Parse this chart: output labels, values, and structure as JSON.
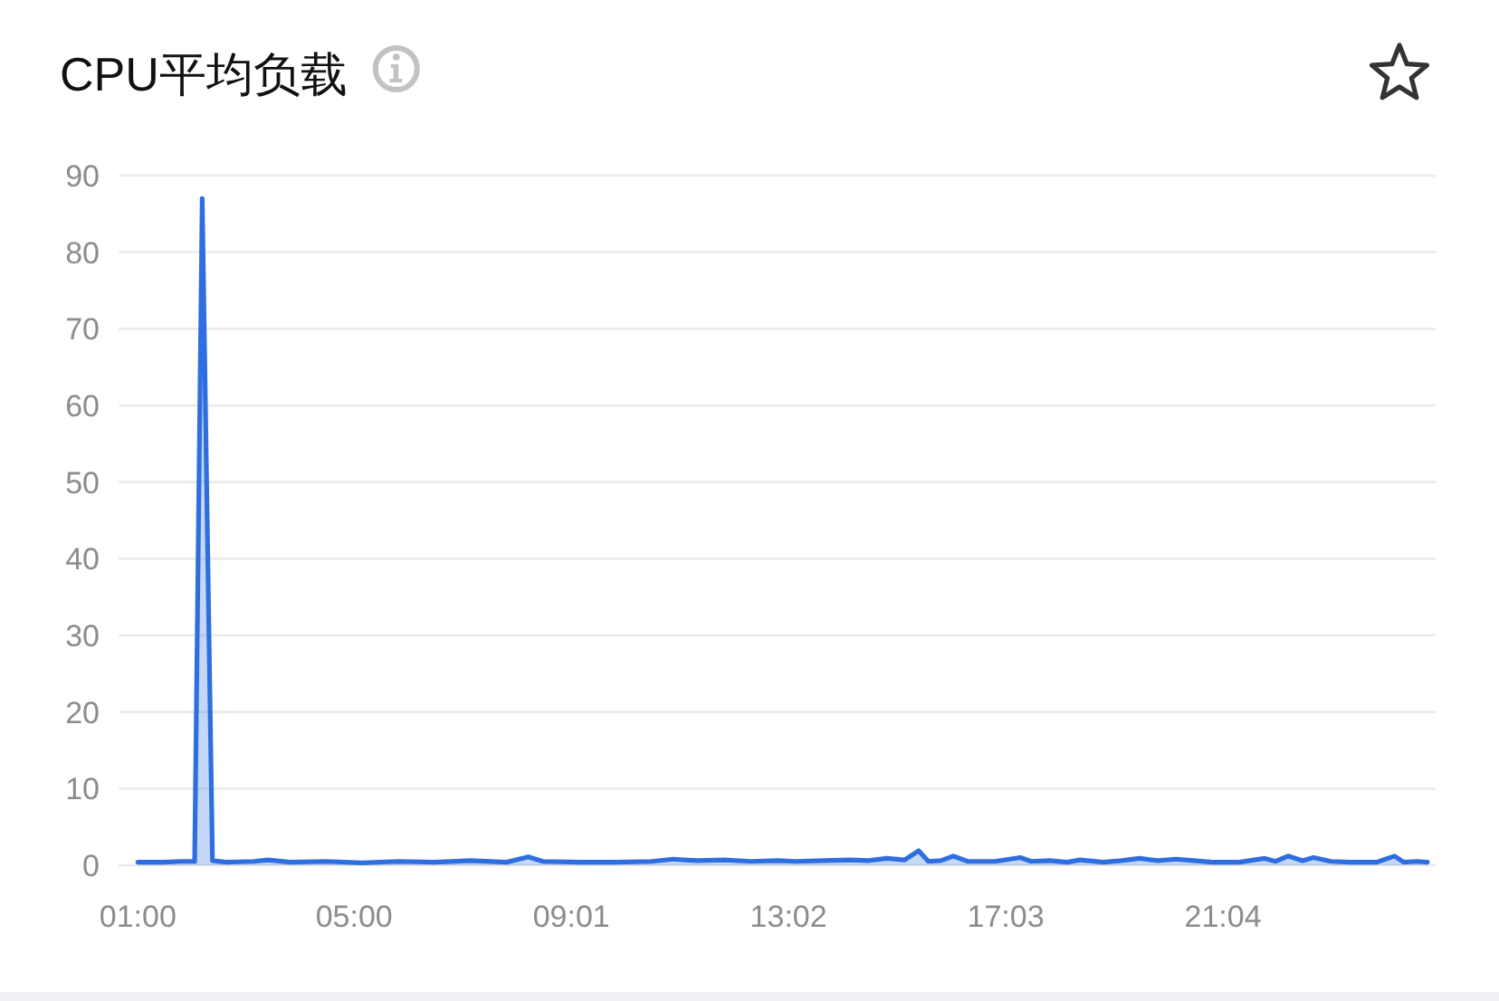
{
  "chart_data": {
    "type": "area",
    "title": "CPU平均负载",
    "color": "#2f6ee0",
    "x": [
      1.0,
      1.47,
      1.8,
      2.05,
      2.19,
      2.38,
      2.64,
      3.14,
      3.41,
      3.81,
      4.48,
      5.15,
      5.82,
      6.48,
      7.15,
      7.82,
      8.22,
      8.49,
      9.16,
      9.83,
      10.5,
      10.9,
      11.33,
      11.84,
      12.34,
      12.84,
      13.17,
      13.68,
      14.18,
      14.51,
      14.85,
      15.18,
      15.44,
      15.62,
      15.85,
      16.08,
      16.35,
      16.85,
      17.32,
      17.52,
      17.86,
      18.19,
      18.42,
      18.86,
      19.19,
      19.53,
      19.86,
      20.2,
      20.53,
      20.87,
      21.37,
      21.84,
      22.04,
      22.27,
      22.54,
      22.74,
      23.07,
      23.41,
      23.91,
      24.24,
      24.41,
      24.65,
      24.85
    ],
    "values": [
      0.4,
      0.4,
      0.5,
      0.5,
      87,
      0.6,
      0.4,
      0.5,
      0.7,
      0.4,
      0.5,
      0.3,
      0.5,
      0.4,
      0.6,
      0.4,
      1.1,
      0.5,
      0.4,
      0.4,
      0.5,
      0.8,
      0.6,
      0.7,
      0.5,
      0.6,
      0.5,
      0.6,
      0.7,
      0.6,
      0.9,
      0.7,
      1.9,
      0.5,
      0.6,
      1.2,
      0.5,
      0.5,
      1.0,
      0.5,
      0.6,
      0.4,
      0.7,
      0.4,
      0.6,
      0.9,
      0.6,
      0.8,
      0.6,
      0.4,
      0.4,
      0.9,
      0.5,
      1.2,
      0.6,
      1.0,
      0.5,
      0.4,
      0.4,
      1.2,
      0.4,
      0.5,
      0.4
    ],
    "xlim": [
      0.65,
      25
    ],
    "xticks": [
      {
        "value": 1,
        "label": "01:00"
      },
      {
        "value": 5,
        "label": "05:00"
      },
      {
        "value": 9.0167,
        "label": "09:01"
      },
      {
        "value": 13.0333,
        "label": "13:02"
      },
      {
        "value": 17.05,
        "label": "17:03"
      },
      {
        "value": 21.0667,
        "label": "21:04"
      }
    ],
    "ylim": [
      0,
      90
    ],
    "yticks": [
      0,
      10,
      20,
      30,
      40,
      50,
      60,
      70,
      80,
      90
    ],
    "grid": "y"
  }
}
